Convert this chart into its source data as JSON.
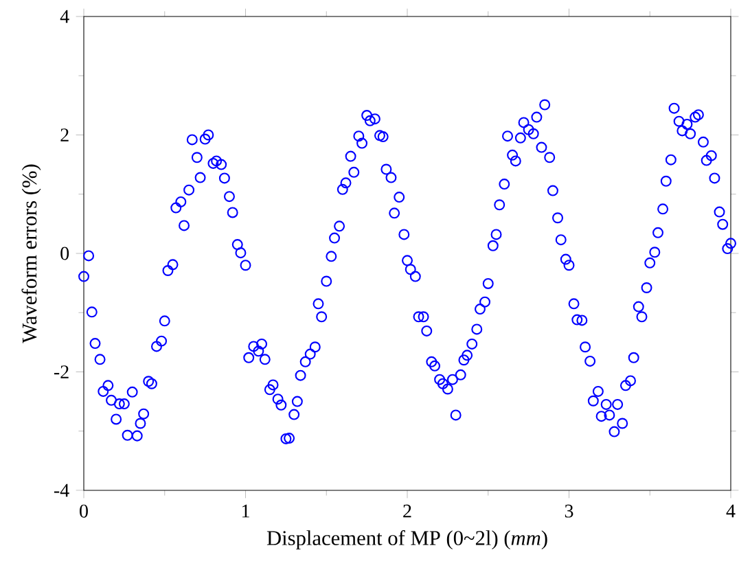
{
  "chart_data": {
    "type": "scatter",
    "xlabel": "Displacement of MP (0~2l) (*mm*)",
    "ylabel": "Waveform errors (%)",
    "xlim": [
      0,
      4
    ],
    "ylim": [
      -4,
      4
    ],
    "xticks": [
      0,
      1,
      2,
      3,
      4
    ],
    "yticks": [
      -4,
      -2,
      0,
      2,
      4
    ],
    "grid": false,
    "marker": "circle",
    "series": [
      {
        "color": "#0000ff",
        "x": [
          0.0,
          0.03,
          0.05,
          0.07,
          0.1,
          0.12,
          0.15,
          0.17,
          0.2,
          0.22,
          0.25,
          0.27,
          0.3,
          0.33,
          0.35,
          0.37,
          0.4,
          0.42,
          0.45,
          0.48,
          0.5,
          0.52,
          0.55,
          0.57,
          0.6,
          0.62,
          0.65,
          0.67,
          0.7,
          0.72,
          0.75,
          0.77,
          0.8,
          0.82,
          0.85,
          0.87,
          0.9,
          0.92,
          0.95,
          0.97,
          1.0,
          1.02,
          1.05,
          1.08,
          1.1,
          1.12,
          1.15,
          1.17,
          1.2,
          1.22,
          1.25,
          1.27,
          1.3,
          1.32,
          1.34,
          1.37,
          1.4,
          1.43,
          1.45,
          1.47,
          1.5,
          1.53,
          1.55,
          1.58,
          1.6,
          1.62,
          1.65,
          1.67,
          1.7,
          1.72,
          1.75,
          1.77,
          1.8,
          1.83,
          1.85,
          1.87,
          1.9,
          1.92,
          1.95,
          1.98,
          2.0,
          2.02,
          2.05,
          2.07,
          2.1,
          2.12,
          2.15,
          2.17,
          2.2,
          2.22,
          2.25,
          2.28,
          2.3,
          2.33,
          2.35,
          2.37,
          2.4,
          2.43,
          2.45,
          2.48,
          2.5,
          2.53,
          2.55,
          2.57,
          2.6,
          2.62,
          2.65,
          2.67,
          2.7,
          2.72,
          2.75,
          2.78,
          2.8,
          2.83,
          2.85,
          2.88,
          2.9,
          2.93,
          2.95,
          2.98,
          3.0,
          3.03,
          3.05,
          3.08,
          3.1,
          3.13,
          3.15,
          3.18,
          3.2,
          3.23,
          3.25,
          3.28,
          3.3,
          3.33,
          3.35,
          3.38,
          3.4,
          3.43,
          3.45,
          3.48,
          3.5,
          3.53,
          3.55,
          3.58,
          3.6,
          3.63,
          3.65,
          3.68,
          3.7,
          3.73,
          3.75,
          3.78,
          3.8,
          3.83,
          3.85,
          3.88,
          3.9,
          3.93,
          3.95,
          3.98,
          4.0
        ],
        "values": [
          -0.39,
          -0.04,
          -0.99,
          -1.52,
          -1.79,
          -2.33,
          -2.23,
          -2.48,
          -2.8,
          -2.54,
          -2.54,
          -3.07,
          -2.34,
          -3.08,
          -2.87,
          -2.71,
          -2.16,
          -2.2,
          -1.57,
          -1.48,
          -1.14,
          -0.29,
          -0.19,
          0.77,
          0.87,
          0.47,
          1.07,
          1.92,
          1.62,
          1.28,
          1.93,
          2.0,
          1.52,
          1.56,
          1.5,
          1.27,
          0.96,
          0.69,
          0.15,
          0.01,
          -0.2,
          -1.76,
          -1.57,
          -1.65,
          -1.53,
          -1.79,
          -2.3,
          -2.22,
          -2.46,
          -2.56,
          -3.13,
          -3.12,
          -2.72,
          -2.5,
          -2.06,
          -1.83,
          -1.7,
          -1.58,
          -0.85,
          -1.07,
          -0.47,
          -0.05,
          0.26,
          0.46,
          1.08,
          1.19,
          1.64,
          1.37,
          1.98,
          1.86,
          2.33,
          2.24,
          2.27,
          1.99,
          1.97,
          1.42,
          1.28,
          0.68,
          0.95,
          0.32,
          -0.12,
          -0.27,
          -0.39,
          -1.07,
          -1.07,
          -1.31,
          -1.83,
          -1.9,
          -2.13,
          -2.2,
          -2.29,
          -2.13,
          -2.73,
          -2.05,
          -1.8,
          -1.72,
          -1.53,
          -1.28,
          -0.94,
          -0.82,
          -0.51,
          0.13,
          0.32,
          0.82,
          1.17,
          1.98,
          1.66,
          1.56,
          1.95,
          2.21,
          2.09,
          2.02,
          2.3,
          1.79,
          2.51,
          1.62,
          1.06,
          0.6,
          0.23,
          -0.1,
          -0.2,
          -0.85,
          -1.12,
          -1.13,
          -1.58,
          -1.82,
          -2.49,
          -2.33,
          -2.75,
          -2.55,
          -2.73,
          -3.01,
          -2.55,
          -2.87,
          -2.23,
          -2.15,
          -1.76,
          -0.9,
          -1.07,
          -0.58,
          -0.16,
          0.02,
          0.35,
          0.75,
          1.22,
          1.58,
          2.45,
          2.23,
          2.07,
          2.18,
          2.02,
          2.3,
          2.34,
          1.88,
          1.57,
          1.65,
          1.27,
          0.7,
          0.49,
          0.08,
          0.17
        ]
      }
    ]
  }
}
